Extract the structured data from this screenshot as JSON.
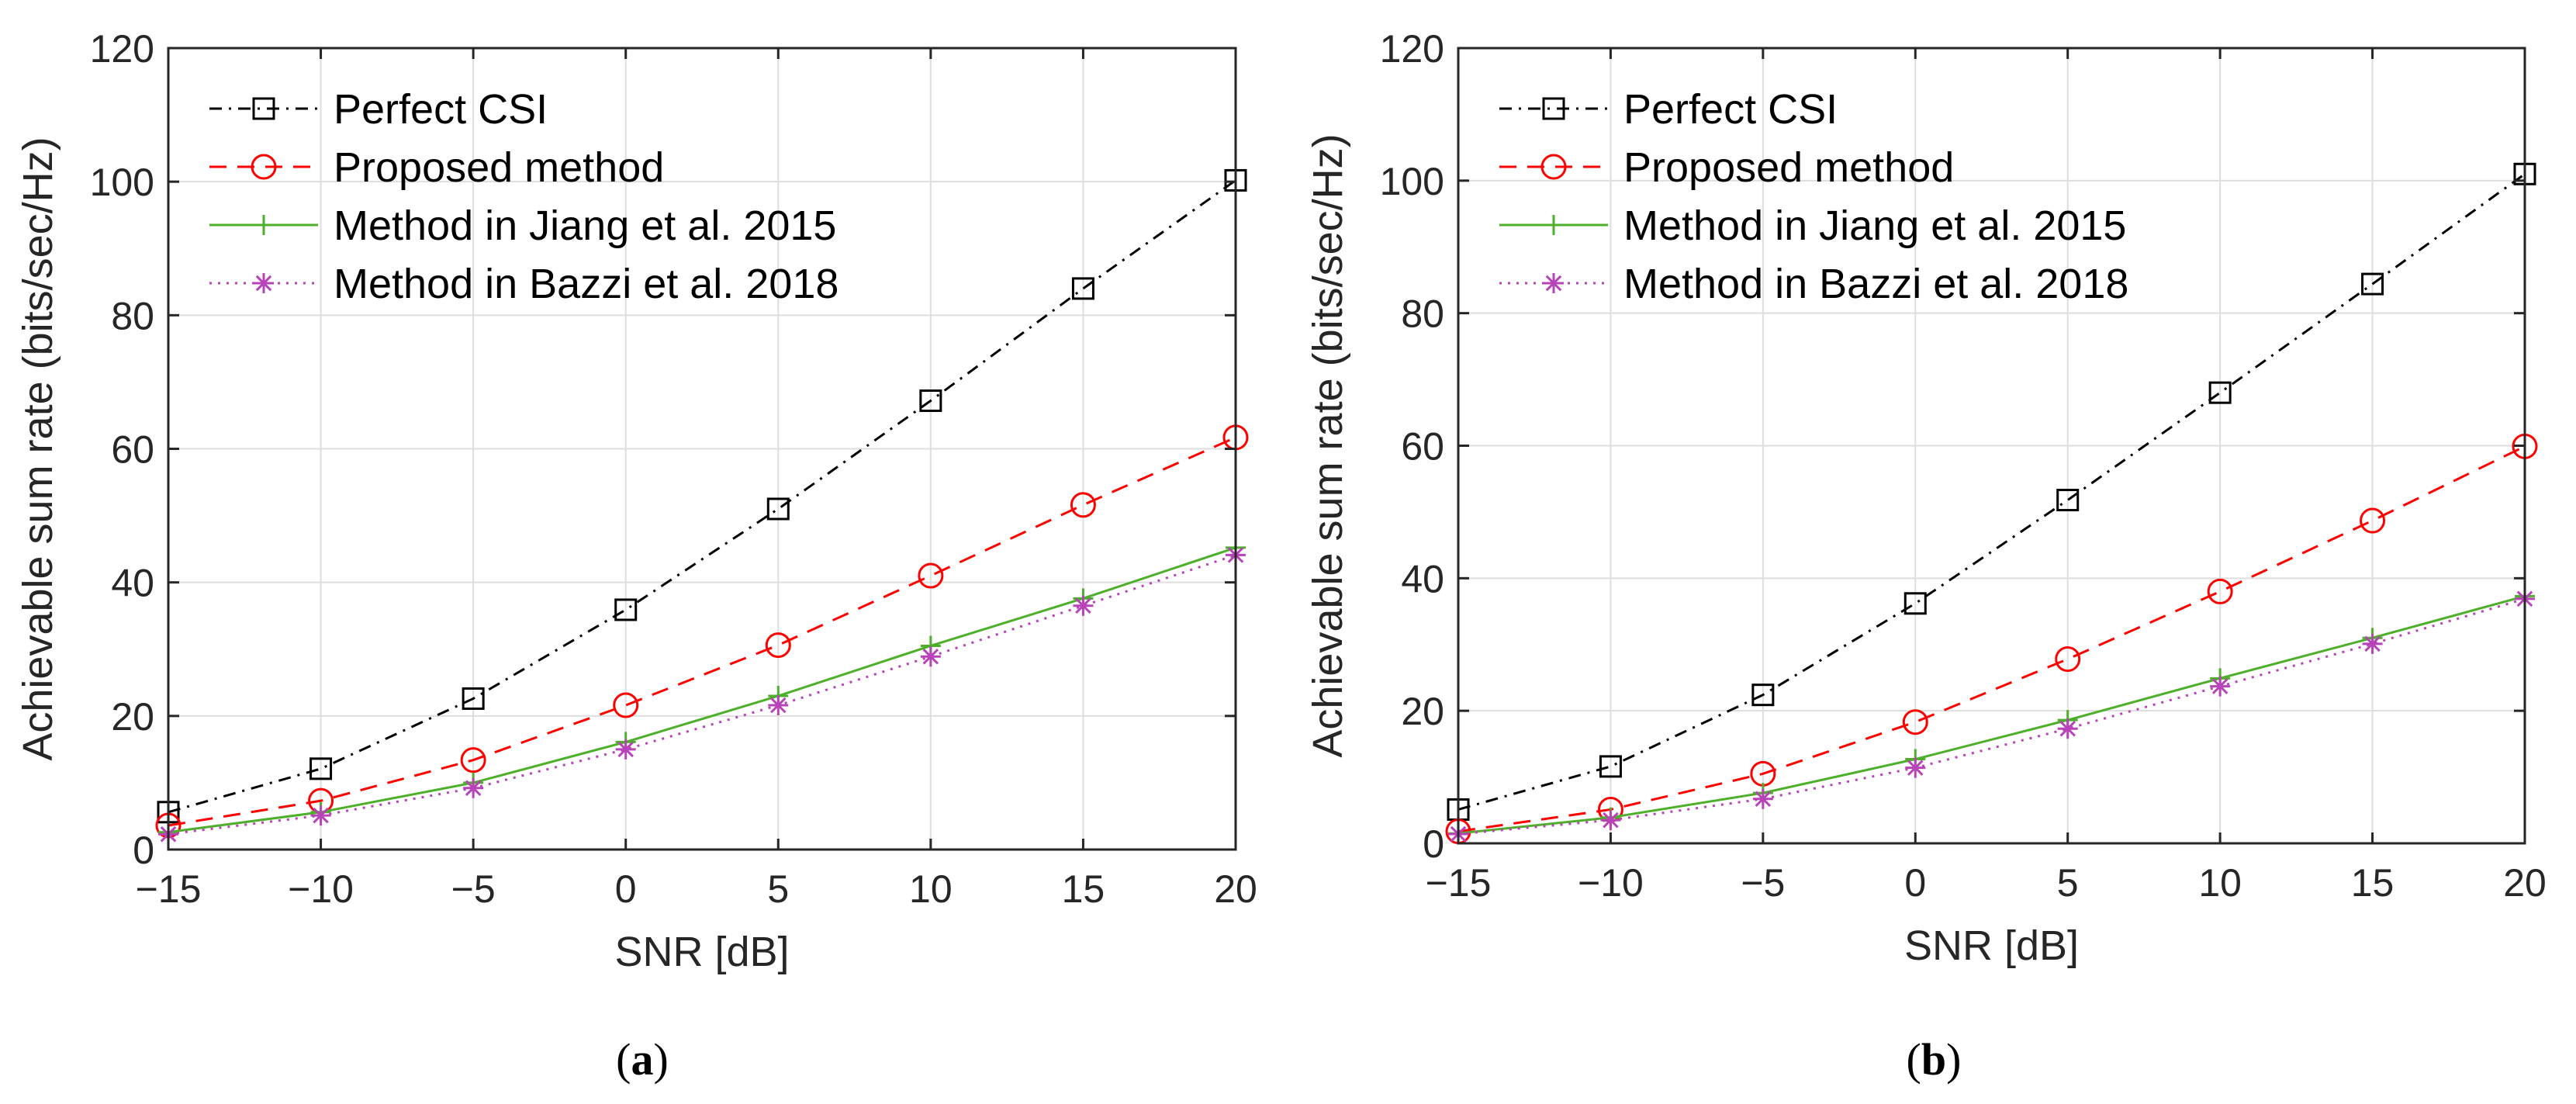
{
  "chart_data": [
    {
      "type": "line",
      "panel_label": "a",
      "title": "",
      "xlabel": "SNR [dB]",
      "ylabel": "Achievable sum rate (bits/sec/Hz)",
      "xlim": [
        -15,
        20
      ],
      "ylim": [
        0,
        120
      ],
      "xticks": [
        -15,
        -10,
        -5,
        0,
        5,
        10,
        15,
        20
      ],
      "xtick_labels": [
        "−15",
        "−10",
        "−5",
        "0",
        "5",
        "10",
        "15",
        "20"
      ],
      "yticks": [
        0,
        20,
        40,
        60,
        80,
        100,
        120
      ],
      "ytick_labels": [
        "0",
        "20",
        "40",
        "60",
        "80",
        "100",
        "120"
      ],
      "grid": true,
      "legend_position": "top-left",
      "x": [
        -15,
        -10,
        -5,
        0,
        5,
        10,
        15,
        20
      ],
      "series": [
        {
          "name": "Perfect CSI",
          "color": "#000000",
          "marker": "square",
          "dash": "dashdot",
          "values": [
            5.6,
            12.1,
            22.6,
            35.9,
            51.0,
            67.2,
            84.0,
            100.2
          ]
        },
        {
          "name": "Proposed method",
          "color": "#ff0000",
          "marker": "circle",
          "dash": "dashed",
          "values": [
            3.6,
            7.3,
            13.4,
            21.6,
            30.6,
            41.0,
            51.6,
            61.7
          ]
        },
        {
          "name": "Method in Jiang et al. 2015",
          "color": "#4daf2a",
          "marker": "plus",
          "dash": "solid",
          "values": [
            2.6,
            5.6,
            10.0,
            16.1,
            23.0,
            30.5,
            37.6,
            45.2
          ]
        },
        {
          "name": "Method in Bazzi et al. 2018",
          "color": "#b843b8",
          "marker": "asterisk",
          "dash": "dotted",
          "values": [
            2.3,
            5.1,
            9.2,
            15.0,
            21.6,
            28.9,
            36.5,
            44.1
          ]
        }
      ]
    },
    {
      "type": "line",
      "panel_label": "b",
      "title": "",
      "xlabel": "SNR [dB]",
      "ylabel": "Achievable sum rate (bits/sec/Hz)",
      "xlim": [
        -15,
        20
      ],
      "ylim": [
        0,
        120
      ],
      "xticks": [
        -15,
        -10,
        -5,
        0,
        5,
        10,
        15,
        20
      ],
      "xtick_labels": [
        "−15",
        "−10",
        "−5",
        "0",
        "5",
        "10",
        "15",
        "20"
      ],
      "yticks": [
        0,
        20,
        40,
        60,
        80,
        100,
        120
      ],
      "ytick_labels": [
        "0",
        "20",
        "40",
        "60",
        "80",
        "100",
        "120"
      ],
      "grid": true,
      "legend_position": "top-left",
      "x": [
        -15,
        -10,
        -5,
        0,
        5,
        10,
        15,
        20
      ],
      "series": [
        {
          "name": "Perfect CSI",
          "color": "#000000",
          "marker": "square",
          "dash": "dashdot",
          "values": [
            5.1,
            11.6,
            22.4,
            36.2,
            51.8,
            68.0,
            84.4,
            101.0
          ]
        },
        {
          "name": "Proposed method",
          "color": "#ff0000",
          "marker": "circle",
          "dash": "dashed",
          "values": [
            1.8,
            5.1,
            10.5,
            18.3,
            27.8,
            38.0,
            48.7,
            59.9
          ]
        },
        {
          "name": "Method in Jiang et al. 2015",
          "color": "#4daf2a",
          "marker": "plus",
          "dash": "solid",
          "values": [
            1.5,
            3.9,
            7.6,
            12.7,
            18.6,
            24.9,
            31.0,
            37.3
          ]
        },
        {
          "name": "Method in Bazzi et al. 2018",
          "color": "#b843b8",
          "marker": "asterisk",
          "dash": "dotted",
          "values": [
            1.4,
            3.5,
            6.7,
            11.4,
            17.3,
            23.7,
            30.1,
            36.9
          ]
        }
      ]
    }
  ]
}
